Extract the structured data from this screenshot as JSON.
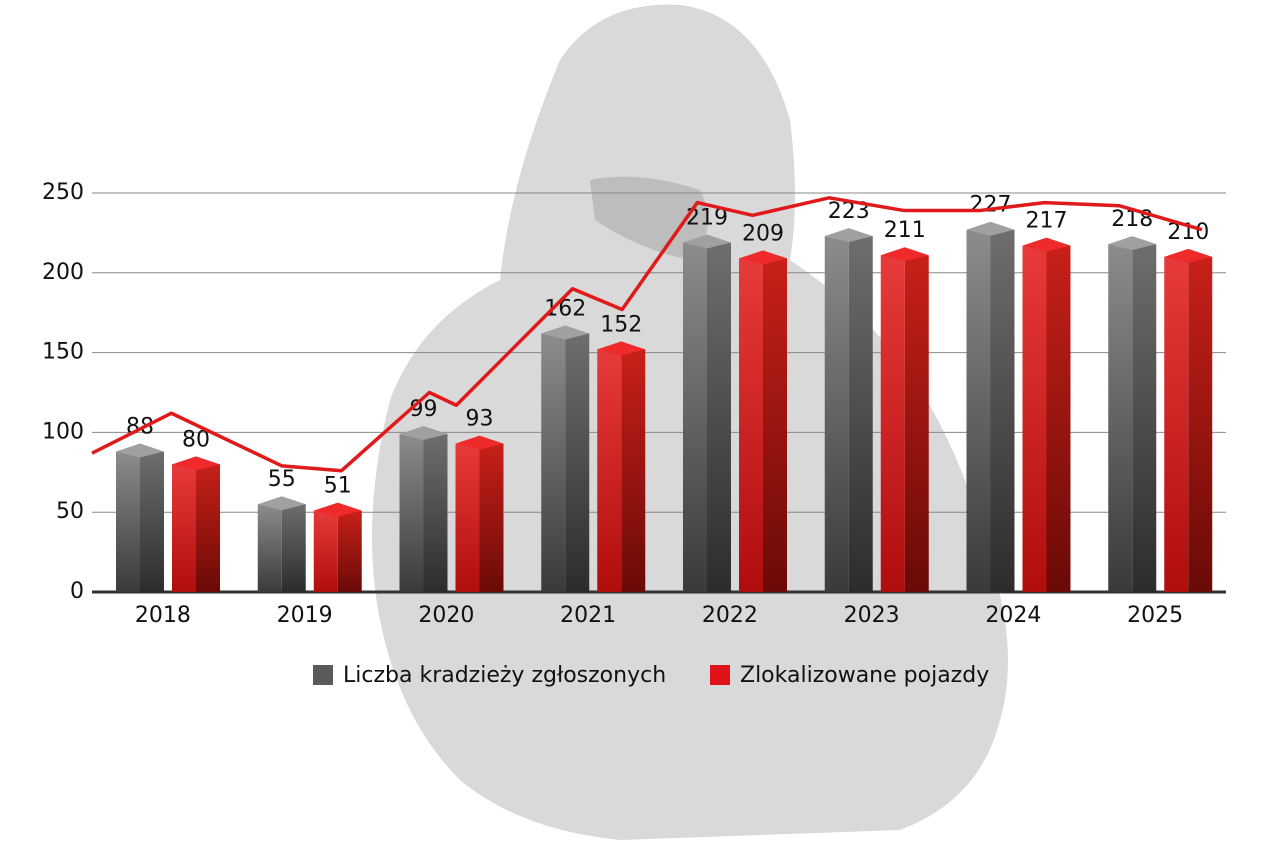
{
  "chart_data": {
    "type": "bar",
    "categories": [
      "2018",
      "2019",
      "2020",
      "2021",
      "2022",
      "2023",
      "2024",
      "2025"
    ],
    "series": [
      {
        "name": "Liczba kradzieży zgłoszonych",
        "color": "#5a5a5a",
        "values": [
          88,
          55,
          99,
          162,
          219,
          223,
          227,
          218
        ]
      },
      {
        "name": "Zlokalizowane pojazdy",
        "color": "#e0121a",
        "values": [
          80,
          51,
          93,
          152,
          209,
          211,
          217,
          210
        ]
      }
    ],
    "line": {
      "color": "#e0191b",
      "x": [
        2017.5,
        2018.06,
        2018.84,
        2019.26,
        2019.88,
        2020.07,
        2020.89,
        2021.24,
        2021.77,
        2022.16,
        2022.7,
        2023.23,
        2023.76,
        2024.22,
        2024.75,
        2025.33
      ],
      "values": [
        87,
        112,
        79,
        76,
        125,
        117,
        190,
        177,
        244,
        236,
        247,
        239,
        239,
        244,
        242,
        227
      ]
    },
    "xlim": [
      2017.5,
      2025.5
    ],
    "ylim": [
      0,
      250
    ],
    "yticks": [
      0,
      50,
      100,
      150,
      200,
      250
    ],
    "grid": true
  }
}
